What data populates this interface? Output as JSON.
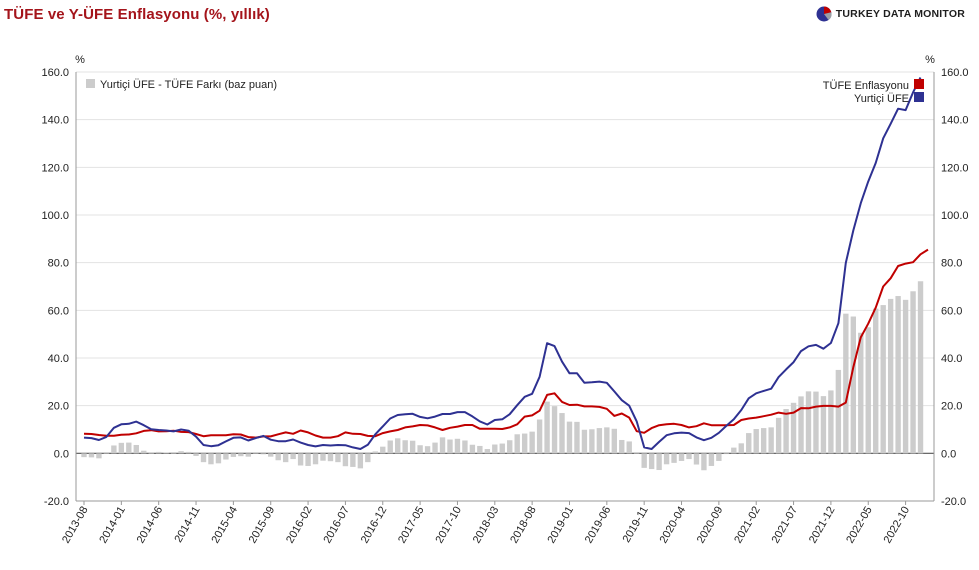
{
  "header": {
    "title": "TÜFE ve Y-ÜFE Enflasyonu (%, yıllık)",
    "brand": "TURKEY DATA MONITOR",
    "brand_logo_icon": "pie-globe-icon"
  },
  "colors": {
    "cpi": "#c00000",
    "ppi": "#2e3192",
    "diff": "#cccccc",
    "grid": "#e3e3e3",
    "title": "#a4141b"
  },
  "chart_data": {
    "type": "line",
    "y_unit_left": "%",
    "y_unit_right": "%",
    "ylim": [
      -20,
      160
    ],
    "yticks": [
      "-20.0",
      "0.0",
      "20.0",
      "40.0",
      "60.0",
      "80.0",
      "100.0",
      "120.0",
      "140.0",
      "160.0"
    ],
    "ytick_values": [
      -20,
      0,
      20,
      40,
      60,
      80,
      100,
      120,
      140,
      160
    ],
    "xtick_labels": [
      "2013-08",
      "2014-01",
      "2014-06",
      "2014-11",
      "2015-04",
      "2015-09",
      "2016-02",
      "2016-07",
      "2016-12",
      "2017-05",
      "2017-10",
      "2018-03",
      "2018-08",
      "2019-01",
      "2019-06",
      "2019-11",
      "2020-04",
      "2020-09",
      "2021-02",
      "2021-07",
      "2021-12",
      "2022-05",
      "2022-10"
    ],
    "legend": {
      "bar_label": "Yurtiçi ÜFE - TÜFE Farkı (baz puan)",
      "cpi_label": "TÜFE Enflasyonu",
      "ppi_label": "Yurtiçi ÜFE"
    },
    "grid": true,
    "start": "2013-08",
    "series": [
      {
        "name": "TÜFE Enflasyonu",
        "values": [
          8.2,
          8.1,
          7.7,
          7.4,
          7.4,
          7.8,
          7.9,
          8.4,
          9.4,
          9.7,
          9.2,
          9.3,
          9.5,
          9.0,
          8.9,
          8.1,
          7.2,
          7.6,
          7.6,
          7.6,
          8.0,
          7.9,
          6.8,
          6.6,
          7.1,
          7.1,
          8.0,
          8.8,
          8.2,
          9.6,
          8.8,
          7.5,
          6.6,
          6.6,
          7.2,
          8.8,
          8.2,
          8.1,
          7.3,
          7.2,
          8.5,
          9.2,
          9.8,
          10.9,
          11.3,
          11.9,
          11.7,
          10.9,
          9.8,
          10.7,
          11.2,
          11.9,
          11.9,
          10.3,
          10.3,
          10.3,
          10.2,
          10.9,
          12.2,
          15.4,
          15.9,
          17.9,
          24.5,
          25.2,
          21.6,
          20.3,
          20.4,
          19.7,
          19.7,
          19.5,
          18.7,
          15.7,
          16.7,
          15.0,
          9.3,
          8.6,
          10.6,
          11.8,
          12.2,
          12.4,
          11.9,
          10.9,
          11.4,
          12.6,
          11.8,
          11.8,
          11.8,
          11.9,
          14.0,
          14.6,
          15.0,
          15.6,
          16.2,
          17.1,
          16.6,
          17.1,
          19.0,
          18.9,
          19.6,
          19.9,
          19.9,
          19.6,
          21.3,
          36.1,
          48.7,
          54.4,
          61.1,
          70.0,
          73.5,
          78.6,
          79.6,
          80.2,
          83.5,
          85.5
        ]
      },
      {
        "name": "Yurtiçi ÜFE",
        "values": [
          6.6,
          6.4,
          5.6,
          6.9,
          10.7,
          12.2,
          12.4,
          13.3,
          11.8,
          10.1,
          9.8,
          9.6,
          9.2,
          10.0,
          9.5,
          7.0,
          3.5,
          3.0,
          3.4,
          5.0,
          6.5,
          6.7,
          5.4,
          6.4,
          7.3,
          5.7,
          5.1,
          5.1,
          5.8,
          4.5,
          3.5,
          2.9,
          3.5,
          3.3,
          3.5,
          3.4,
          2.5,
          1.8,
          3.6,
          8.0,
          11.3,
          14.6,
          16.1,
          16.4,
          16.6,
          15.3,
          14.7,
          15.4,
          16.5,
          16.5,
          17.3,
          17.3,
          15.5,
          13.4,
          12.1,
          14.0,
          14.3,
          16.4,
          20.2,
          23.7,
          25.0,
          32.1,
          46.2,
          45.0,
          38.5,
          33.6,
          33.6,
          29.6,
          29.8,
          30.1,
          29.6,
          26.0,
          22.3,
          20.0,
          13.4,
          2.5,
          1.8,
          4.8,
          7.6,
          8.4,
          8.7,
          8.5,
          6.7,
          5.5,
          6.5,
          8.6,
          11.5,
          14.3,
          18.2,
          23.1,
          25.2,
          26.2,
          27.1,
          32.0,
          35.2,
          38.3,
          42.9,
          44.9,
          45.5,
          43.9,
          46.3,
          54.6,
          79.9,
          93.5,
          105.0,
          114.0,
          121.8,
          132.2,
          138.3,
          144.6,
          144.0,
          151.5,
          157.7
        ]
      }
    ],
    "bar_series": {
      "name": "Yurtiçi ÜFE - TÜFE Farkı (baz puan)",
      "values": [
        -1.6,
        -1.7,
        -2.1,
        0.0,
        3.3,
        4.4,
        4.5,
        3.5,
        1.1,
        0.2,
        0.6,
        0.3,
        -0.1,
        0.9,
        0.6,
        -1.1,
        -3.7,
        -4.6,
        -4.2,
        -2.6,
        -1.5,
        -1.2,
        -1.4,
        -0.2,
        -0.4,
        -1.4,
        -2.9,
        -3.7,
        -2.4,
        -5.1,
        -5.3,
        -4.6,
        -3.1,
        -3.3,
        -3.7,
        -5.4,
        -5.7,
        -6.3,
        -3.7,
        0.8,
        2.8,
        5.4,
        6.3,
        5.5,
        5.3,
        3.4,
        3.0,
        4.5,
        6.7,
        5.8,
        6.1,
        5.4,
        3.6,
        3.1,
        1.8,
        3.7,
        4.1,
        5.5,
        8.0,
        8.3,
        9.1,
        14.2,
        21.7,
        19.8,
        16.9,
        13.3,
        13.2,
        9.9,
        10.1,
        10.6,
        10.9,
        10.3,
        5.6,
        5.0,
        -0.1,
        -6.1,
        -6.6,
        -7.0,
        -4.6,
        -4.0,
        -3.2,
        -2.4,
        -4.7,
        -7.1,
        -5.3,
        -3.2,
        -0.3,
        2.4,
        4.2,
        8.5,
        10.2,
        10.6,
        10.9,
        14.9,
        18.6,
        21.2,
        23.9,
        26.0,
        25.9,
        24.0,
        26.4,
        35.0,
        58.6,
        57.4,
        50.6,
        52.9,
        60.7,
        62.2,
        64.8,
        66.0,
        64.4,
        68.0,
        72.2
      ]
    }
  }
}
